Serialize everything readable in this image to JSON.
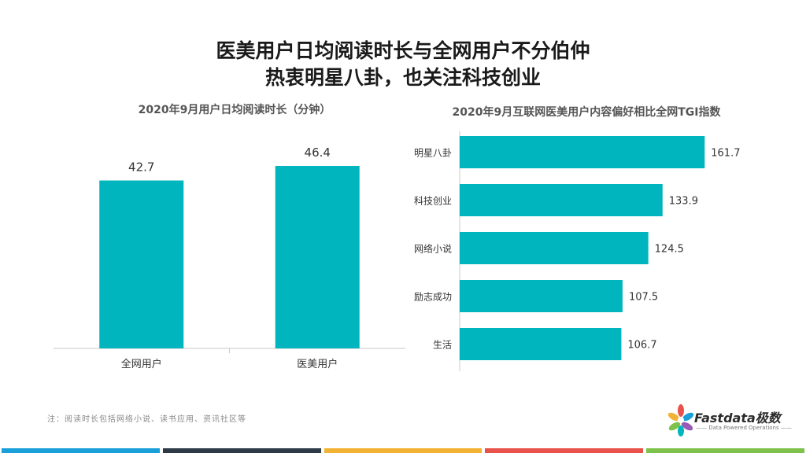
{
  "headline": {
    "line1": "医美用户日均阅读时长与全网用户不分伯仲",
    "line2": "热衷明星八卦，也关注科技创业"
  },
  "chart_data": [
    {
      "type": "bar",
      "title": "2020年9月用户日均阅读时长（分钟）",
      "categories": [
        "全网用户",
        "医美用户"
      ],
      "values": [
        42.7,
        46.4
      ],
      "ylim": [
        0,
        60
      ],
      "grid": false,
      "color": "#00B5BE"
    },
    {
      "type": "bar",
      "orientation": "horizontal",
      "title": "2020年9月互联网医美用户内容偏好相比全网TGI指数",
      "categories": [
        "明星八卦",
        "科技创业",
        "网络小说",
        "励志成功",
        "生活"
      ],
      "values": [
        161.7,
        133.9,
        124.5,
        107.5,
        106.7
      ],
      "xlim": [
        0,
        200
      ],
      "grid": false,
      "color": "#00B5BE"
    }
  ],
  "note": "注：阅读时长包括网络小说、读书应用、资讯社区等",
  "logo": {
    "name": "Fastdata极数",
    "tagline": "—— Data Powered Operations ——"
  },
  "colors": {
    "bar": "#00B5BE",
    "footer": [
      "#1AA0D8",
      "#2E3A48",
      "#F2B233",
      "#E8524A",
      "#7FC24B"
    ]
  }
}
